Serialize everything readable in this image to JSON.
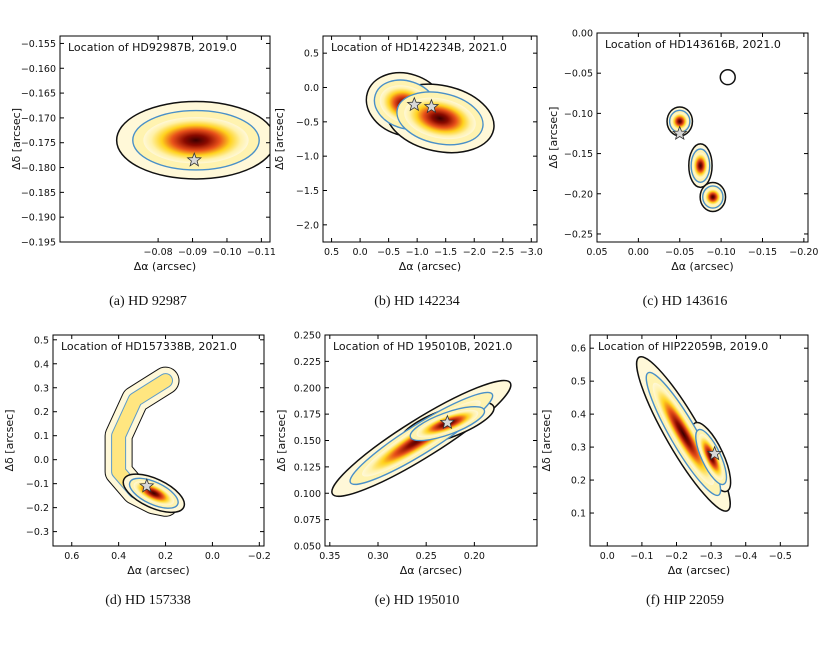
{
  "chart_data": [
    {
      "type": "heatmap",
      "caption": "(a) HD 92987",
      "title": "Location of HD92987B, 2019.0",
      "xlabel": "Δα (arcsec)",
      "ylabel": "Δδ [arcsec]",
      "xlim": [
        -0.0515,
        -0.1125
      ],
      "ylim": [
        -0.195,
        -0.1535
      ],
      "xticks": [
        -0.08,
        -0.09,
        -0.1,
        -0.11
      ],
      "xtick_labels": [
        "−0.08",
        "−0.09",
        "−0.10",
        "−0.11"
      ],
      "yticks": [
        -0.155,
        -0.16,
        -0.165,
        -0.17,
        -0.175,
        -0.18,
        -0.185,
        -0.19,
        -0.195
      ],
      "ytick_labels": [
        "−0.155",
        "−0.160",
        "−0.165",
        "−0.170",
        "−0.175",
        "−0.180",
        "−0.185",
        "−0.190",
        "−0.195"
      ],
      "blobs": [
        {
          "x": -0.091,
          "y": -0.1745,
          "rx": 0.018,
          "ry": 0.0052,
          "rot": 0
        }
      ],
      "star": {
        "x": -0.0905,
        "y": -0.1785
      },
      "circles": []
    },
    {
      "type": "heatmap",
      "caption": "(b) HD 142234",
      "title": "Location of HD142234B, 2021.0",
      "xlabel": "Δα (arcsec)",
      "ylabel": "Δδ [arcsec]",
      "xlim": [
        0.65,
        -3.1
      ],
      "ylim": [
        -2.25,
        0.75
      ],
      "xticks": [
        0.5,
        0.0,
        -0.5,
        -1.0,
        -1.5,
        -2.0,
        -2.5,
        -3.0
      ],
      "xtick_labels": [
        "0.5",
        "0.0",
        "−0.5",
        "−1.0",
        "−1.5",
        "−2.0",
        "−2.5",
        "−3.0"
      ],
      "yticks": [
        0.5,
        0.0,
        -0.5,
        -1.0,
        -1.5,
        -2.0
      ],
      "ytick_labels": [
        "0.5",
        "0.0",
        "−0.5",
        "−1.0",
        "−1.5",
        "−2.0"
      ],
      "blobs": [
        {
          "x": -0.8,
          "y": -0.25,
          "rx": 0.55,
          "ry": 0.3,
          "rot": 18
        },
        {
          "x": -1.4,
          "y": -0.45,
          "rx": 0.75,
          "ry": 0.32,
          "rot": 12
        }
      ],
      "star": {
        "x": -0.95,
        "y": -0.25
      },
      "star2": {
        "x": -1.25,
        "y": -0.28
      },
      "circles": []
    },
    {
      "type": "heatmap",
      "caption": "(c) HD 143616",
      "title": "Location of HD143616B, 2021.0",
      "xlabel": "Δα (arcsec)",
      "ylabel": "Δδ [arcsec]",
      "xlim": [
        0.05,
        -0.205
      ],
      "ylim": [
        -0.26,
        0.0
      ],
      "xticks": [
        0.05,
        0.0,
        -0.05,
        -0.1,
        -0.15,
        -0.2
      ],
      "xtick_labels": [
        "0.05",
        "0.00",
        "−0.05",
        "−0.10",
        "−0.15",
        "−0.20"
      ],
      "yticks": [
        0.0,
        -0.05,
        -0.1,
        -0.15,
        -0.2,
        -0.25
      ],
      "ytick_labels": [
        "0.00",
        "−0.05",
        "−0.10",
        "−0.15",
        "−0.20",
        "−0.25"
      ],
      "blobs": [
        {
          "x": -0.05,
          "y": -0.11,
          "rx": 0.012,
          "ry": 0.012,
          "rot": 0
        },
        {
          "x": -0.075,
          "y": -0.165,
          "rx": 0.011,
          "ry": 0.018,
          "rot": 0
        },
        {
          "x": -0.09,
          "y": -0.204,
          "rx": 0.012,
          "ry": 0.012,
          "rot": 0
        }
      ],
      "star": {
        "x": -0.05,
        "y": -0.125
      },
      "circles": [
        {
          "x": -0.108,
          "y": -0.055,
          "r": 0.009
        }
      ]
    },
    {
      "type": "heatmap",
      "caption": "(d) HD 157338",
      "title": "Location of HD157338B, 2021.0",
      "xlabel": "Δα (arcsec)",
      "ylabel": "Δδ [arcsec]",
      "xlim": [
        0.68,
        -0.22
      ],
      "ylim": [
        -0.36,
        0.52
      ],
      "xticks": [
        0.6,
        0.4,
        0.2,
        0.0,
        -0.2
      ],
      "xtick_labels": [
        "0.6",
        "0.4",
        "0.2",
        "0.0",
        "−0.2"
      ],
      "yticks": [
        0.5,
        0.4,
        0.3,
        0.2,
        0.1,
        0.0,
        -0.1,
        -0.2,
        -0.3
      ],
      "ytick_labels": [
        "0.5",
        "0.4",
        "0.3",
        "0.2",
        "0.1",
        "0.0",
        "−0.1",
        "−0.2",
        "−0.3"
      ],
      "arc": [
        [
          0.2,
          0.33
        ],
        [
          0.33,
          0.25
        ],
        [
          0.4,
          0.1
        ],
        [
          0.4,
          -0.05
        ],
        [
          0.33,
          -0.13
        ],
        [
          0.25,
          -0.17
        ],
        [
          0.2,
          -0.18
        ]
      ],
      "blobs": [
        {
          "x": 0.25,
          "y": -0.14,
          "rx": 0.11,
          "ry": 0.04,
          "rot": 25
        }
      ],
      "star": {
        "x": 0.28,
        "y": -0.11
      },
      "circles": []
    },
    {
      "type": "heatmap",
      "caption": "(e) HD 195010",
      "title": "Location of HD 195010B, 2021.0",
      "xlabel": "Δα (arcsec)",
      "ylabel": "Δδ [arcsec]",
      "xlim": [
        0.355,
        0.135
      ],
      "ylim": [
        0.05,
        0.25
      ],
      "xticks": [
        0.35,
        0.3,
        0.25,
        0.2
      ],
      "xtick_labels": [
        "0.35",
        "0.30",
        "0.25",
        "0.20"
      ],
      "yticks": [
        0.25,
        0.225,
        0.2,
        0.175,
        0.15,
        0.125,
        0.1,
        0.075,
        0.05
      ],
      "ytick_labels": [
        "0.250",
        "0.225",
        "0.200",
        "0.175",
        "0.150",
        "0.125",
        "0.100",
        "0.075",
        "0.050"
      ],
      "blobs": [
        {
          "x": 0.255,
          "y": 0.152,
          "rx": 0.085,
          "ry": 0.012,
          "rot": -32
        },
        {
          "x": 0.228,
          "y": 0.166,
          "rx": 0.04,
          "ry": 0.009,
          "rot": -20
        }
      ],
      "star": {
        "x": 0.228,
        "y": 0.167
      },
      "circles": []
    },
    {
      "type": "heatmap",
      "caption": "(f) HIP 22059",
      "title": "Location of HIP22059B, 2019.0",
      "xlabel": "Δα (arcsec)",
      "ylabel": "Δδ [arcsec]",
      "xlim": [
        0.05,
        -0.58
      ],
      "ylim": [
        0.0,
        0.64
      ],
      "xticks": [
        0.0,
        -0.1,
        -0.2,
        -0.3,
        -0.4,
        -0.5
      ],
      "xtick_labels": [
        "0.0",
        "−0.1",
        "−0.2",
        "−0.3",
        "−0.4",
        "−0.5"
      ],
      "yticks": [
        0.6,
        0.5,
        0.4,
        0.3,
        0.2,
        0.1
      ],
      "ytick_labels": [
        "0.6",
        "0.5",
        "0.4",
        "0.3",
        "0.2",
        "0.1"
      ],
      "blobs": [
        {
          "x": -0.22,
          "y": 0.34,
          "rx": 0.2,
          "ry": 0.035,
          "rot": 60
        },
        {
          "x": -0.3,
          "y": 0.27,
          "rx": 0.085,
          "ry": 0.025,
          "rot": 65
        }
      ],
      "star": {
        "x": -0.31,
        "y": 0.28
      },
      "circles": []
    }
  ],
  "colors": {
    "outer_contour": "#111111",
    "inner_contour": "#4a90c8",
    "glow_outer": "#fff8d8",
    "glow_mid": "#ffd21e",
    "glow_hot": "#e8501a",
    "glow_core": "#3a0000",
    "star_fill": "#d8d8d8"
  }
}
